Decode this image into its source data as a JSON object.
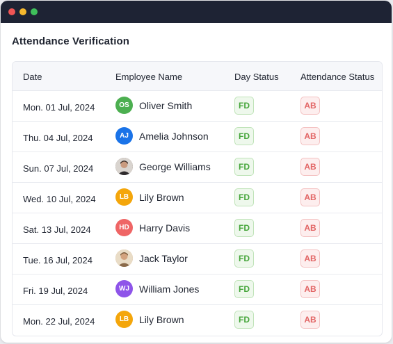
{
  "window": {
    "controls": [
      "close",
      "minimize",
      "maximize"
    ]
  },
  "page": {
    "title": "Attendance Verification"
  },
  "colors": {
    "titlebar": "#1e2334",
    "fd_text": "#45a53a",
    "ab_text": "#e26565"
  },
  "table": {
    "headers": {
      "date": "Date",
      "employee": "Employee Name",
      "day_status": "Day Status",
      "attendance_status": "Attendance Status"
    },
    "rows": [
      {
        "date": "Mon. 01 Jul, 2024",
        "initials": "OS",
        "avatar_color": "#4caf50",
        "photo": false,
        "name": "Oliver Smith",
        "day_status": "FD",
        "attendance_status": "AB"
      },
      {
        "date": "Thu. 04 Jul, 2024",
        "initials": "AJ",
        "avatar_color": "#1a73e8",
        "photo": false,
        "name": "Amelia Johnson",
        "day_status": "FD",
        "attendance_status": "AB"
      },
      {
        "date": "Sun. 07 Jul, 2024",
        "initials": "",
        "avatar_color": "#5b4a44",
        "photo": true,
        "name": "George Williams",
        "day_status": "FD",
        "attendance_status": "AB"
      },
      {
        "date": "Wed. 10 Jul, 2024",
        "initials": "LB",
        "avatar_color": "#f4a60b",
        "photo": false,
        "name": "Lily Brown",
        "day_status": "FD",
        "attendance_status": "AB"
      },
      {
        "date": "Sat. 13 Jul, 2024",
        "initials": "HD",
        "avatar_color": "#ef6565",
        "photo": false,
        "name": "Harry Davis",
        "day_status": "FD",
        "attendance_status": "AB"
      },
      {
        "date": "Tue. 16 Jul, 2024",
        "initials": "",
        "avatar_color": "#c9a27a",
        "photo": true,
        "name": "Jack Taylor",
        "day_status": "FD",
        "attendance_status": "AB"
      },
      {
        "date": "Fri. 19 Jul, 2024",
        "initials": "WJ",
        "avatar_color": "#8e54e9",
        "photo": false,
        "name": "William Jones",
        "day_status": "FD",
        "attendance_status": "AB"
      },
      {
        "date": "Mon. 22 Jul, 2024",
        "initials": "LB",
        "avatar_color": "#f4a60b",
        "photo": false,
        "name": "Lily Brown",
        "day_status": "FD",
        "attendance_status": "AB"
      }
    ]
  }
}
